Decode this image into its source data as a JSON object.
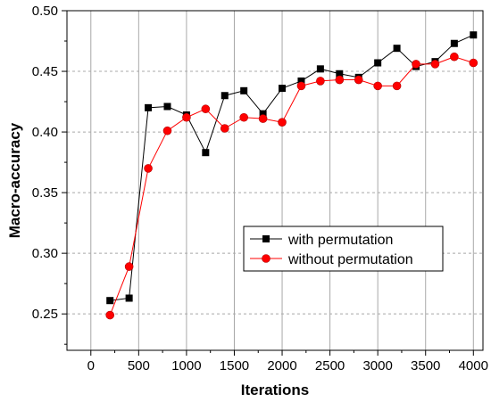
{
  "chart_data": {
    "type": "line",
    "xlabel": "Iterations",
    "ylabel": "Macro-accuracy",
    "xlim": [
      -250,
      4100
    ],
    "ylim": [
      0.22,
      0.5
    ],
    "xticks": [
      0,
      500,
      1000,
      1500,
      2000,
      2500,
      3000,
      3500,
      4000
    ],
    "yticks": [
      0.25,
      0.3,
      0.35,
      0.4,
      0.45,
      0.5
    ],
    "xtick_labels": [
      "0",
      "500",
      "1000",
      "1500",
      "2000",
      "2500",
      "3000",
      "3500",
      "4000"
    ],
    "ytick_labels": [
      "0.25",
      "0.30",
      "0.35",
      "0.40",
      "0.45",
      "0.50"
    ],
    "grid": {
      "vertical": "solid",
      "horizontal": "dashed"
    },
    "legend_position": "center-right",
    "series": [
      {
        "name": "with permutation",
        "color": "#000000",
        "marker": "square",
        "x": [
          200,
          400,
          600,
          800,
          1000,
          1200,
          1400,
          1600,
          1800,
          2000,
          2200,
          2400,
          2600,
          2800,
          3000,
          3200,
          3400,
          3600,
          3800,
          4000
        ],
        "y": [
          0.261,
          0.263,
          0.42,
          0.421,
          0.414,
          0.383,
          0.43,
          0.434,
          0.415,
          0.436,
          0.442,
          0.452,
          0.448,
          0.445,
          0.457,
          0.469,
          0.454,
          0.458,
          0.473,
          0.48
        ]
      },
      {
        "name": "without permutation",
        "color": "#ff0000",
        "marker": "circle",
        "x": [
          200,
          400,
          600,
          800,
          1000,
          1200,
          1400,
          1600,
          1800,
          2000,
          2200,
          2400,
          2600,
          2800,
          3000,
          3200,
          3400,
          3600,
          3800,
          4000
        ],
        "y": [
          0.249,
          0.289,
          0.37,
          0.401,
          0.412,
          0.419,
          0.403,
          0.412,
          0.411,
          0.408,
          0.438,
          0.442,
          0.443,
          0.443,
          0.438,
          0.438,
          0.456,
          0.456,
          0.462,
          0.457
        ]
      }
    ]
  }
}
